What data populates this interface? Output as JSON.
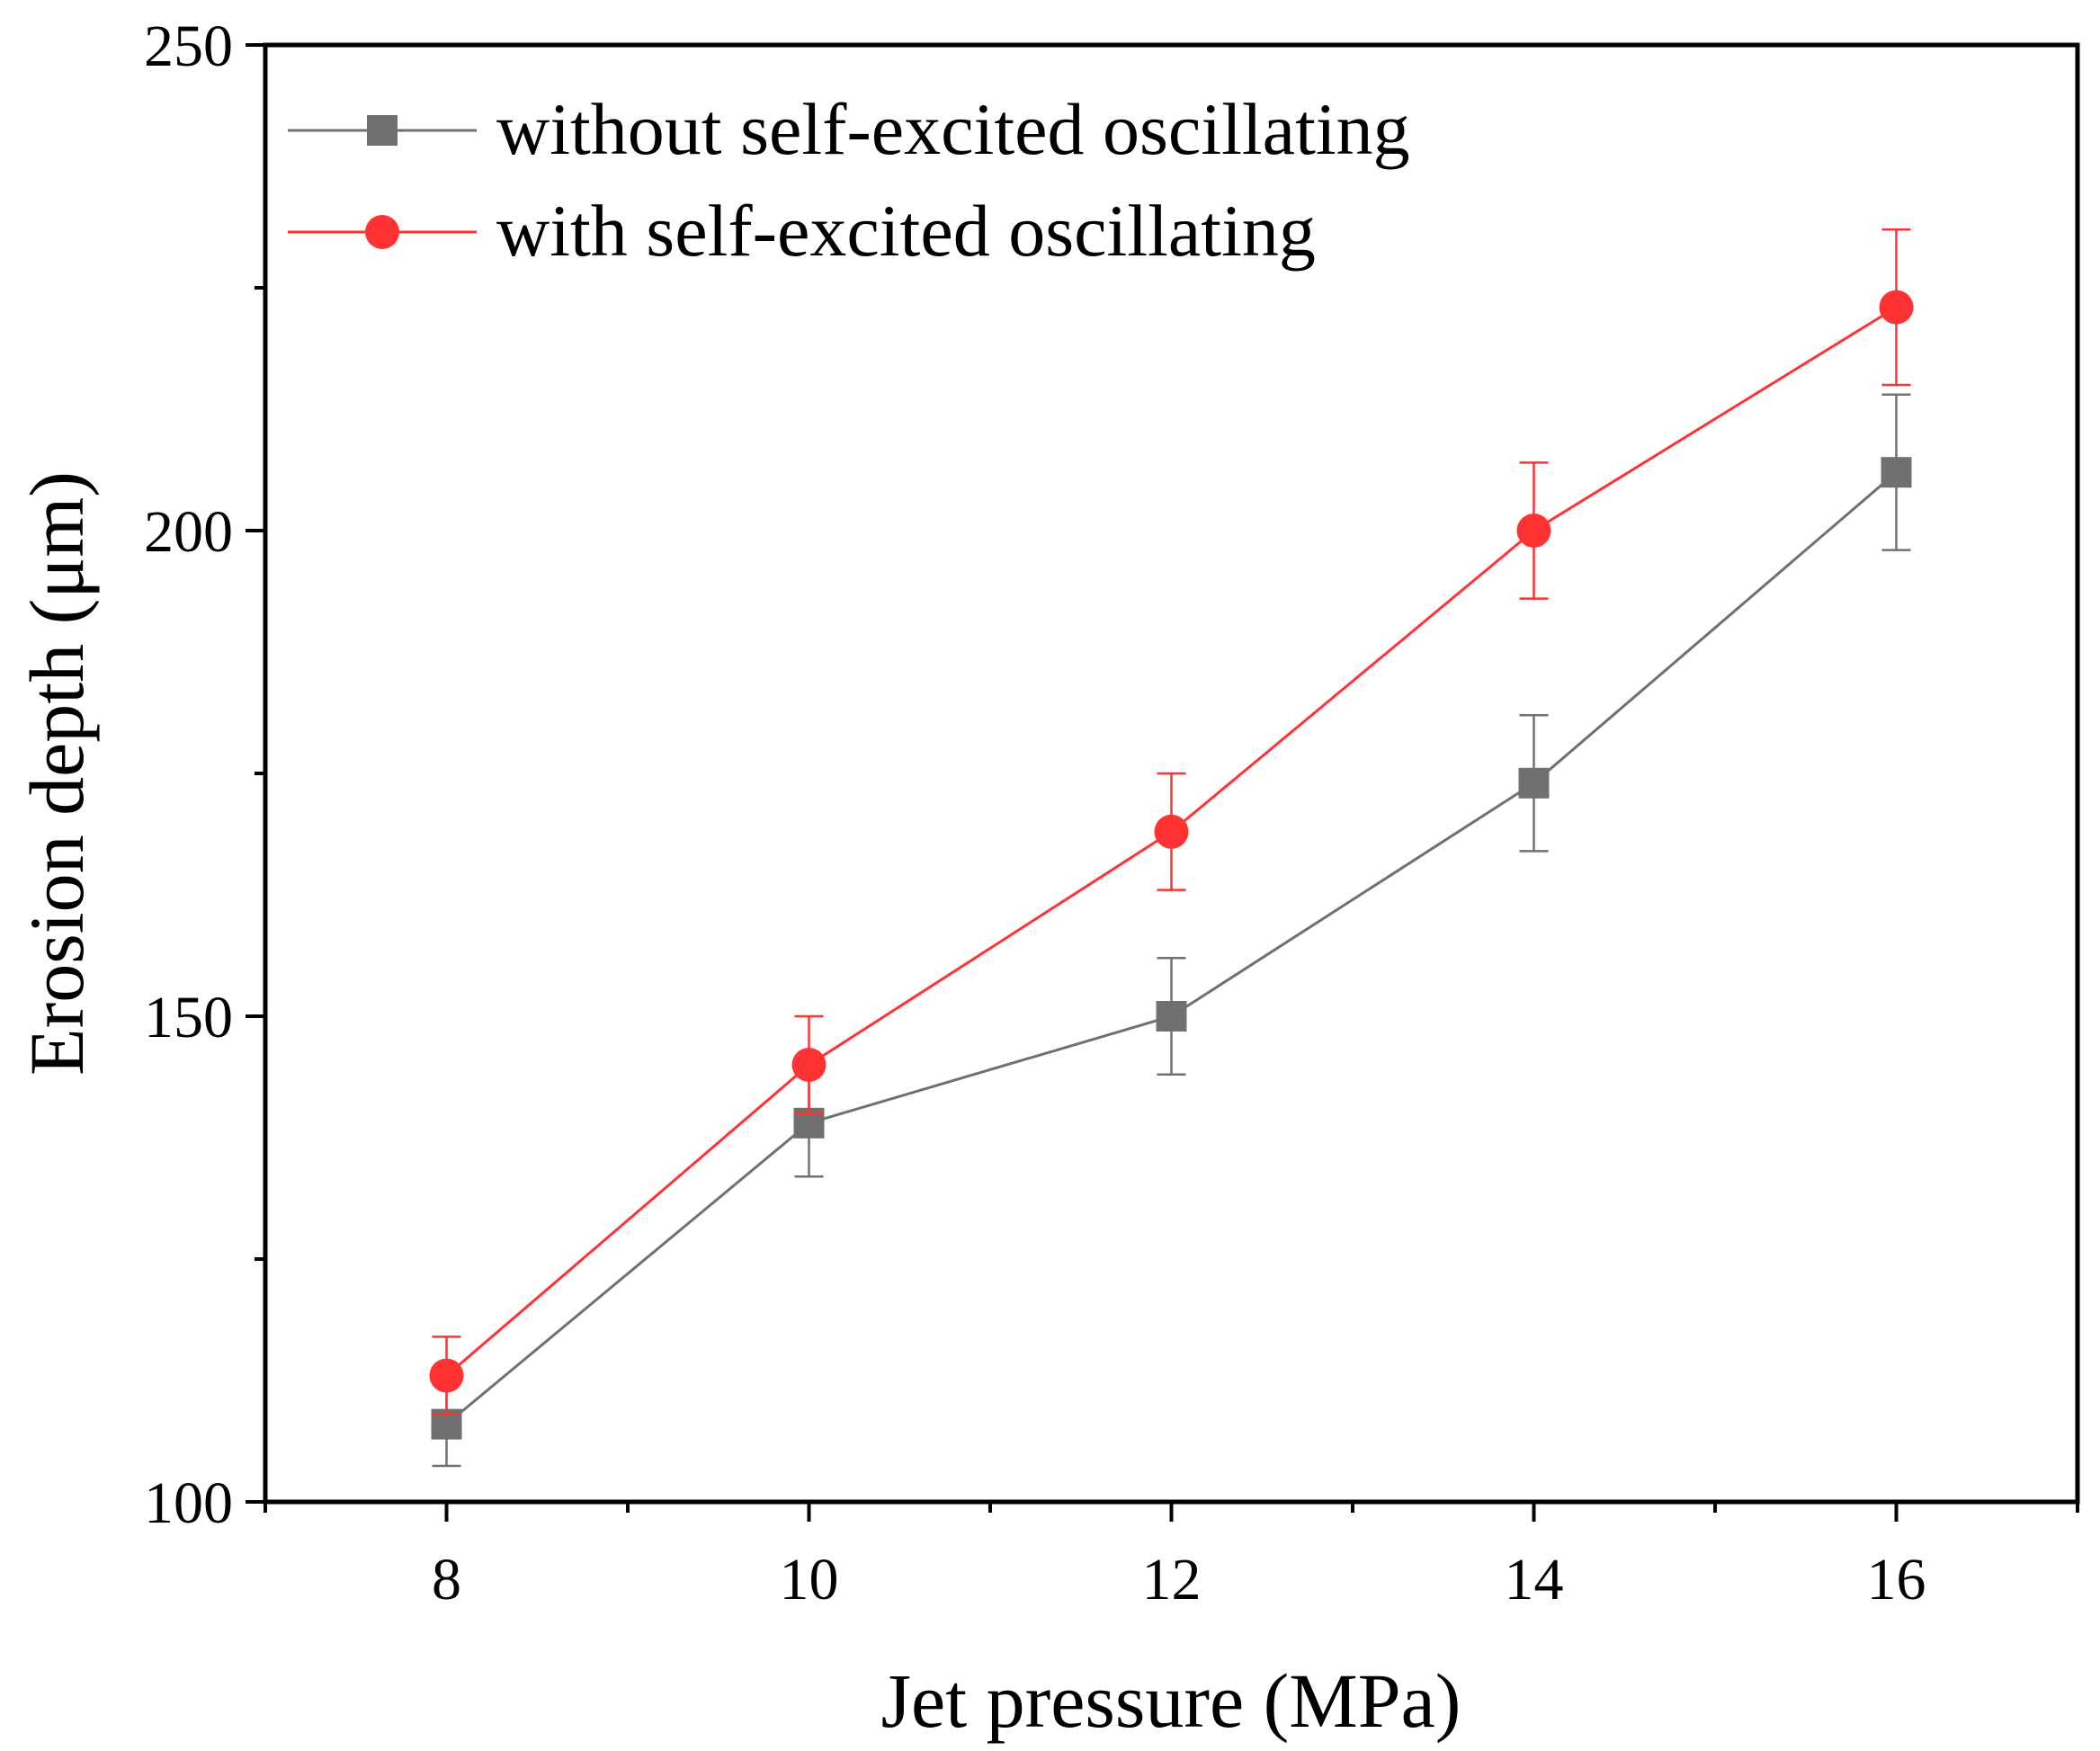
{
  "chart_data": {
    "type": "line",
    "title": "",
    "xlabel": "Jet pressure (MPa)",
    "ylabel": "Erosion depth (μm)",
    "xlim": [
      7,
      17
    ],
    "ylim": [
      100,
      250
    ],
    "xticks": [
      8,
      10,
      12,
      14,
      16
    ],
    "xticks_minor": [
      7,
      9,
      11,
      13,
      15,
      17
    ],
    "yticks": [
      100,
      150,
      200,
      250
    ],
    "yticks_minor": [
      125,
      175,
      225
    ],
    "xtick_labels": [
      "8",
      "10",
      "12",
      "14",
      "16"
    ],
    "ytick_labels": [
      "100",
      "150",
      "200",
      "250"
    ],
    "legend": "top-left",
    "grid": false,
    "series": [
      {
        "name": "without self-excited oscillating",
        "marker": "square",
        "color": "#707070",
        "x": [
          8,
          10,
          12,
          14,
          16
        ],
        "y": [
          108,
          139,
          150,
          174,
          206
        ],
        "err": [
          4.3,
          5.5,
          6,
          7,
          8
        ]
      },
      {
        "name": "with self-excited oscillating",
        "marker": "circle",
        "color": "#ff3333",
        "x": [
          8,
          10,
          12,
          14,
          16
        ],
        "y": [
          113,
          145,
          169,
          200,
          223
        ],
        "err": [
          4,
          5,
          6,
          7,
          8
        ]
      }
    ]
  }
}
